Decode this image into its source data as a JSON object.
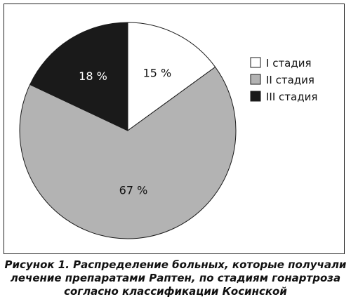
{
  "chart_data": {
    "type": "pie",
    "categories": [
      "I стадия",
      "II стадия",
      "III стадия"
    ],
    "values": [
      15,
      67,
      18
    ],
    "value_labels": [
      "15 %",
      "67 %",
      "18 %"
    ],
    "colors": [
      "#ffffff",
      "#b3b3b3",
      "#1a1a1a"
    ],
    "label_colors": [
      "#111111",
      "#111111",
      "#ffffff"
    ],
    "start_angle_deg": 0,
    "direction": "clockwise",
    "legend_position": "right"
  },
  "caption": {
    "line1": "Рисунок 1.   Распределение больных, которые получали",
    "line2": "лечение препаратами Рaптен, по стадиям гонартроза",
    "line3": "согласно классификации Косинской"
  }
}
